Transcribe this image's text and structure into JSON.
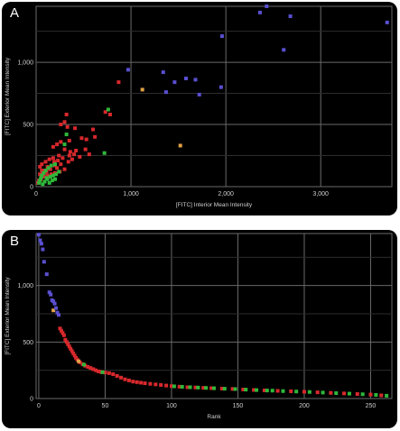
{
  "chart_data": [
    {
      "panel_label": "A",
      "type": "scatter",
      "xlabel": "[FITC] Interior Mean Intensity",
      "ylabel": "[FITC] Exterior Mean Intensity",
      "xlim": [
        0,
        3750
      ],
      "ylim": [
        0,
        1450
      ],
      "xticks": [
        0,
        1000,
        2000,
        3000
      ],
      "xtick_labels": [
        "0",
        "1,000",
        "2,000",
        "3,000"
      ],
      "yticks": [
        0,
        500,
        1000
      ],
      "ytick_labels": [
        "0",
        "500",
        "1,000"
      ],
      "grid": true,
      "colors": {
        "background": "#000000",
        "grid": "#6a6a6a",
        "red": "#d8282c",
        "green": "#2fb83a",
        "blue": "#5a4fd0",
        "orange": "#e0a045"
      },
      "series": [
        {
          "color": "blue",
          "points": [
            [
              2430,
              1450
            ],
            [
              2360,
              1400
            ],
            [
              2680,
              1370
            ],
            [
              3700,
              1320
            ],
            [
              1960,
              1210
            ],
            [
              2610,
              1100
            ],
            [
              970,
              940
            ],
            [
              1340,
              920
            ],
            [
              1580,
              870
            ],
            [
              1680,
              860
            ],
            [
              1460,
              840
            ],
            [
              1370,
              760
            ],
            [
              1720,
              740
            ],
            [
              1950,
              800
            ]
          ]
        },
        {
          "color": "orange",
          "points": [
            [
              1120,
              780
            ],
            [
              1520,
              330
            ]
          ]
        },
        {
          "color": "red",
          "points": [
            [
              870,
              840
            ],
            [
              730,
              600
            ],
            [
              780,
              580
            ],
            [
              320,
              580
            ],
            [
              300,
              520
            ],
            [
              260,
              500
            ],
            [
              330,
              480
            ],
            [
              410,
              470
            ],
            [
              600,
              460
            ],
            [
              620,
              400
            ],
            [
              480,
              390
            ],
            [
              530,
              380
            ],
            [
              350,
              370
            ],
            [
              260,
              360
            ],
            [
              220,
              340
            ],
            [
              180,
              320
            ],
            [
              300,
              300
            ],
            [
              420,
              290
            ],
            [
              360,
              280
            ],
            [
              520,
              300
            ],
            [
              560,
              260
            ],
            [
              240,
              250
            ],
            [
              180,
              230
            ],
            [
              140,
              220
            ],
            [
              100,
              200
            ],
            [
              60,
              180
            ],
            [
              40,
              160
            ],
            [
              120,
              160
            ],
            [
              200,
              170
            ],
            [
              260,
              180
            ],
            [
              340,
              200
            ],
            [
              300,
              140
            ],
            [
              250,
              120
            ],
            [
              200,
              110
            ],
            [
              160,
              100
            ],
            [
              120,
              90
            ],
            [
              80,
              80
            ],
            [
              50,
              60
            ],
            [
              30,
              50
            ],
            [
              90,
              130
            ],
            [
              150,
              140
            ],
            [
              220,
              150
            ],
            [
              380,
              220
            ],
            [
              460,
              240
            ],
            [
              70,
              110
            ],
            [
              110,
              120
            ],
            [
              190,
              200
            ],
            [
              230,
              210
            ],
            [
              280,
              230
            ],
            [
              350,
              250
            ],
            [
              400,
              260
            ],
            [
              40,
              100
            ],
            [
              60,
              130
            ],
            [
              20,
              30
            ]
          ]
        },
        {
          "color": "green",
          "points": [
            [
              760,
              620
            ],
            [
              320,
              420
            ],
            [
              300,
              340
            ],
            [
              720,
              270
            ],
            [
              200,
              180
            ],
            [
              160,
              170
            ],
            [
              130,
              150
            ],
            [
              100,
              130
            ],
            [
              80,
              110
            ],
            [
              60,
              90
            ],
            [
              50,
              70
            ],
            [
              40,
              50
            ],
            [
              30,
              30
            ],
            [
              120,
              60
            ],
            [
              150,
              80
            ],
            [
              180,
              90
            ],
            [
              210,
              100
            ],
            [
              240,
              120
            ],
            [
              90,
              40
            ],
            [
              70,
              20
            ],
            [
              140,
              30
            ],
            [
              110,
              70
            ],
            [
              170,
              50
            ],
            [
              200,
              60
            ]
          ]
        }
      ]
    },
    {
      "panel_label": "B",
      "type": "scatter",
      "xlabel": "Rank",
      "ylabel": "[FITC] Exterior Mean Intensity",
      "xlim": [
        -2,
        266
      ],
      "ylim": [
        0,
        1460
      ],
      "xticks": [
        0,
        50,
        100,
        150,
        200,
        250
      ],
      "xtick_labels": [
        "0",
        "50",
        "100",
        "150",
        "200",
        "250"
      ],
      "yticks": [
        0,
        500,
        1000
      ],
      "ytick_labels": [
        "0",
        "500",
        "1,000"
      ],
      "grid": true,
      "colors": {
        "background": "#000000",
        "grid": "#6a6a6a",
        "red": "#d8282c",
        "green": "#2fb83a",
        "blue": "#5a4fd0",
        "orange": "#e0a045"
      },
      "series": [
        {
          "color": "blue",
          "points": [
            [
              0,
              1450
            ],
            [
              1,
              1400
            ],
            [
              2,
              1370
            ],
            [
              3,
              1320
            ],
            [
              4,
              1210
            ],
            [
              6,
              1100
            ],
            [
              8,
              940
            ],
            [
              9,
              920
            ],
            [
              10,
              870
            ],
            [
              11,
              860
            ],
            [
              12,
              840
            ],
            [
              13,
              800
            ],
            [
              14,
              760
            ],
            [
              15,
              740
            ]
          ]
        },
        {
          "color": "orange",
          "points": [
            [
              11,
              780
            ],
            [
              30,
              330
            ]
          ]
        },
        {
          "color": "red",
          "points": [
            [
              16,
              620
            ],
            [
              17,
              600
            ],
            [
              18,
              580
            ],
            [
              19,
              560
            ],
            [
              20,
              520
            ],
            [
              21,
              500
            ],
            [
              22,
              480
            ],
            [
              23,
              460
            ],
            [
              24,
              440
            ],
            [
              25,
              420
            ],
            [
              26,
              400
            ],
            [
              27,
              380
            ],
            [
              28,
              360
            ],
            [
              29,
              345
            ],
            [
              31,
              320
            ],
            [
              33,
              305
            ],
            [
              35,
              290
            ],
            [
              37,
              280
            ],
            [
              39,
              270
            ],
            [
              41,
              260
            ],
            [
              43,
              250
            ],
            [
              45,
              240
            ],
            [
              47,
              235
            ],
            [
              50,
              230
            ],
            [
              53,
              225
            ],
            [
              56,
              215
            ],
            [
              59,
              200
            ],
            [
              62,
              185
            ],
            [
              65,
              170
            ],
            [
              68,
              160
            ],
            [
              71,
              150
            ],
            [
              74,
              145
            ],
            [
              77,
              140
            ],
            [
              80,
              135
            ],
            [
              84,
              130
            ],
            [
              88,
              125
            ],
            [
              92,
              120
            ],
            [
              96,
              115
            ],
            [
              100,
              110
            ],
            [
              106,
              105
            ],
            [
              112,
              100
            ],
            [
              118,
              98
            ],
            [
              124,
              95
            ],
            [
              130,
              92
            ],
            [
              138,
              88
            ],
            [
              146,
              85
            ],
            [
              154,
              80
            ],
            [
              162,
              76
            ],
            [
              170,
              72
            ],
            [
              180,
              68
            ],
            [
              190,
              64
            ],
            [
              200,
              60
            ],
            [
              210,
              55
            ],
            [
              220,
              50
            ],
            [
              230,
              45
            ],
            [
              240,
              40
            ],
            [
              250,
              35
            ],
            [
              258,
              28
            ]
          ]
        },
        {
          "color": "green",
          "points": [
            [
              34,
              300
            ],
            [
              48,
              233
            ],
            [
              102,
              108
            ],
            [
              108,
              104
            ],
            [
              114,
              100
            ],
            [
              120,
              97
            ],
            [
              126,
              94
            ],
            [
              132,
              91
            ],
            [
              140,
              87
            ],
            [
              148,
              84
            ],
            [
              156,
              79
            ],
            [
              164,
              75
            ],
            [
              172,
              71
            ],
            [
              176,
              70
            ],
            [
              184,
              66
            ],
            [
              194,
              62
            ],
            [
              204,
              58
            ],
            [
              214,
              53
            ],
            [
              224,
              48
            ],
            [
              234,
              43
            ],
            [
              244,
              38
            ],
            [
              254,
              32
            ],
            [
              262,
              25
            ]
          ]
        }
      ]
    }
  ]
}
